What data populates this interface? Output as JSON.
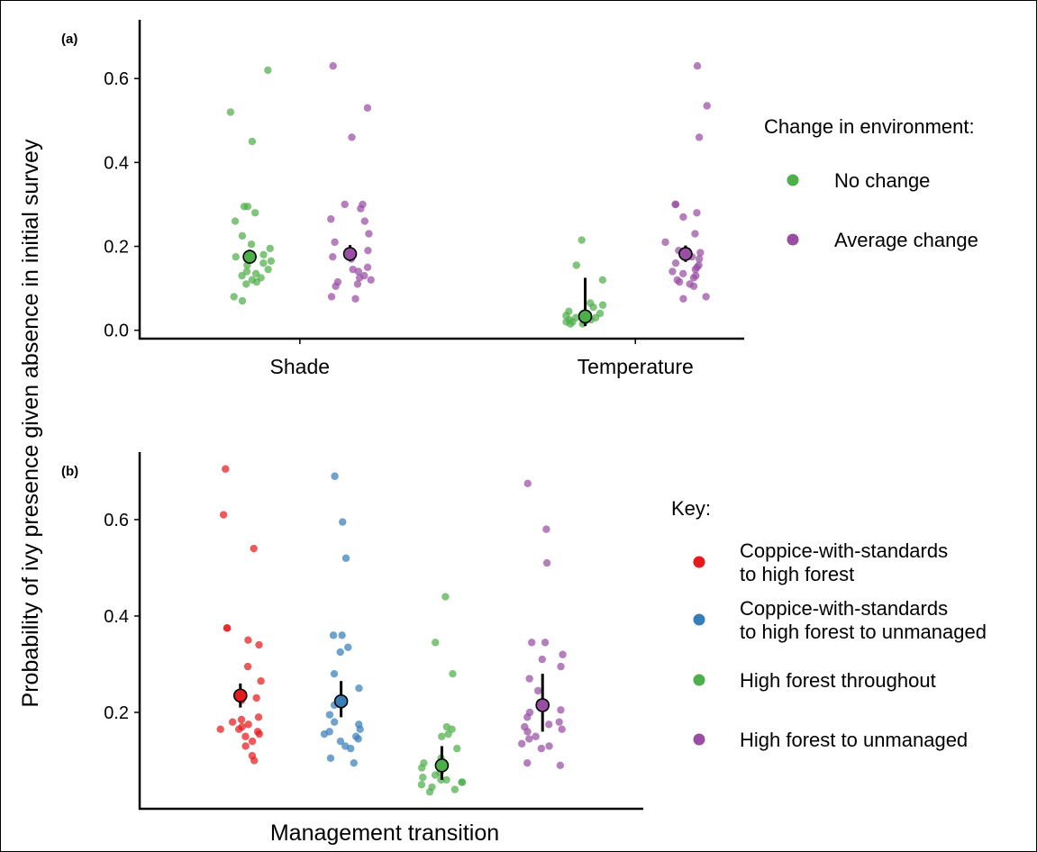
{
  "chart_data": [
    {
      "type": "scatter",
      "panel_label": "(a)",
      "categories": [
        "Shade",
        "Temperature"
      ],
      "ylim": [
        -0.02,
        0.74
      ],
      "yticks": [
        "0.0",
        "0.2",
        "0.4",
        "0.6"
      ],
      "ytick_values": [
        0.0,
        0.2,
        0.4,
        0.6
      ],
      "legend": {
        "title": "Change in environment:",
        "placement": "right",
        "entries": [
          "No change",
          "Average change"
        ]
      },
      "series": [
        {
          "name": "No change",
          "color": "#4daf4a",
          "means": [
            0.175,
            0.033
          ],
          "errors_low": [
            0.16,
            0.01
          ],
          "errors_high": [
            0.192,
            0.125
          ],
          "points": [
            [
              0.62,
              0.52,
              0.45,
              0.295,
              0.295,
              0.28,
              0.26,
              0.225,
              0.205,
              0.195,
              0.18,
              0.175,
              0.165,
              0.16,
              0.155,
              0.145,
              0.14,
              0.135,
              0.13,
              0.125,
              0.12,
              0.115,
              0.11,
              0.08,
              0.07
            ],
            [
              0.215,
              0.155,
              0.12,
              0.065,
              0.06,
              0.055,
              0.045,
              0.04,
              0.035,
              0.03,
              0.03,
              0.025,
              0.025,
              0.02,
              0.02,
              0.02,
              0.015,
              0.015
            ]
          ]
        },
        {
          "name": "Average change",
          "color": "#984ea3",
          "means": [
            0.182,
            0.182
          ],
          "errors_low": [
            0.165,
            0.163
          ],
          "errors_high": [
            0.203,
            0.202
          ],
          "points": [
            [
              0.63,
              0.53,
              0.46,
              0.3,
              0.3,
              0.29,
              0.265,
              0.26,
              0.23,
              0.21,
              0.19,
              0.175,
              0.17,
              0.15,
              0.145,
              0.14,
              0.13,
              0.125,
              0.12,
              0.115,
              0.11,
              0.105,
              0.08,
              0.075
            ],
            [
              0.63,
              0.535,
              0.46,
              0.3,
              0.3,
              0.28,
              0.27,
              0.23,
              0.21,
              0.19,
              0.185,
              0.175,
              0.17,
              0.16,
              0.155,
              0.15,
              0.145,
              0.14,
              0.135,
              0.13,
              0.125,
              0.12,
              0.115,
              0.11,
              0.105,
              0.08,
              0.075
            ]
          ]
        }
      ]
    },
    {
      "type": "scatter",
      "panel_label": "(b)",
      "xlabel": "Management transition",
      "ylim": [
        0.0,
        0.74
      ],
      "yticks": [
        "0.2",
        "0.4",
        "0.6"
      ],
      "ytick_values": [
        0.2,
        0.4,
        0.6
      ],
      "legend": {
        "title": "Key:",
        "placement": "right",
        "entries": [
          [
            "Coppice-with-standards",
            "to high forest"
          ],
          [
            "Coppice-with-standards",
            "to high forest to unmanaged"
          ],
          [
            "High forest throughout"
          ],
          [
            "High forest to unmanaged"
          ]
        ]
      },
      "series": [
        {
          "name": "Coppice-with-standards to high forest",
          "color": "#e41a1c",
          "mean": 0.235,
          "error_low": 0.21,
          "error_high": 0.26,
          "points": [
            0.705,
            0.61,
            0.54,
            0.375,
            0.375,
            0.35,
            0.34,
            0.295,
            0.265,
            0.23,
            0.225,
            0.19,
            0.185,
            0.18,
            0.175,
            0.17,
            0.165,
            0.165,
            0.16,
            0.155,
            0.15,
            0.14,
            0.13,
            0.11,
            0.1
          ]
        },
        {
          "name": "Coppice-with-standards to high forest to unmanaged",
          "color": "#377eb8",
          "mean": 0.223,
          "error_low": 0.19,
          "error_high": 0.265,
          "points": [
            0.69,
            0.595,
            0.52,
            0.36,
            0.36,
            0.335,
            0.325,
            0.28,
            0.25,
            0.215,
            0.195,
            0.18,
            0.175,
            0.165,
            0.16,
            0.155,
            0.15,
            0.145,
            0.14,
            0.13,
            0.125,
            0.105,
            0.095
          ]
        },
        {
          "name": "High forest throughout",
          "color": "#4daf4a",
          "mean": 0.09,
          "error_low": 0.06,
          "error_high": 0.13,
          "points": [
            0.44,
            0.345,
            0.28,
            0.17,
            0.165,
            0.155,
            0.15,
            0.125,
            0.105,
            0.095,
            0.085,
            0.075,
            0.07,
            0.065,
            0.06,
            0.06,
            0.055,
            0.055,
            0.05,
            0.045,
            0.04,
            0.035
          ]
        },
        {
          "name": "High forest to unmanaged",
          "color": "#984ea3",
          "mean": 0.215,
          "error_low": 0.16,
          "error_high": 0.28,
          "points": [
            0.675,
            0.58,
            0.51,
            0.345,
            0.345,
            0.32,
            0.31,
            0.295,
            0.27,
            0.245,
            0.22,
            0.205,
            0.2,
            0.19,
            0.18,
            0.175,
            0.17,
            0.165,
            0.16,
            0.15,
            0.145,
            0.135,
            0.13,
            0.125,
            0.095,
            0.09
          ]
        }
      ]
    }
  ],
  "shared_ylabel": "Probability of ivy presence given absence in initial survey"
}
